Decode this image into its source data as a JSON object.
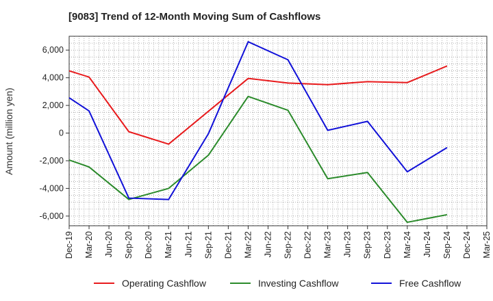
{
  "chart_data": {
    "type": "line",
    "title": "[9083]  Trend of 12-Month Moving Sum of Cashflows",
    "xlabel": "",
    "ylabel": "Amount (million yen)",
    "categories": [
      "Dec-19",
      "Mar-20",
      "Jun-20",
      "Sep-20",
      "Dec-20",
      "Mar-21",
      "Jun-21",
      "Sep-21",
      "Dec-21",
      "Mar-22",
      "Jun-22",
      "Sep-22",
      "Dec-22",
      "Mar-23",
      "Jun-23",
      "Sep-23",
      "Dec-23",
      "Mar-24",
      "Jun-24",
      "Sep-24",
      "Dec-24",
      "Mar-25"
    ],
    "ylim": [
      -6700,
      7000
    ],
    "yticks": [
      6000,
      4000,
      2000,
      0,
      -2000,
      -4000,
      -6000
    ],
    "ytick_labels": [
      "6,000",
      "4,000",
      "2,000",
      "0",
      "-2,000",
      "-4,000",
      "-6,000"
    ],
    "grid": true,
    "legend_position": "bottom",
    "series": [
      {
        "name": "Operating Cashflow",
        "color": "#e8191b",
        "points": [
          [
            "Dec-19",
            4500
          ],
          [
            "Mar-20",
            4050
          ],
          [
            "Sep-20",
            100
          ],
          [
            "Mar-21",
            -800
          ],
          [
            "Mar-22",
            3950
          ],
          [
            "Sep-22",
            3620
          ],
          [
            "Mar-23",
            3500
          ],
          [
            "Sep-23",
            3720
          ],
          [
            "Mar-24",
            3650
          ],
          [
            "Sep-24",
            4850
          ]
        ]
      },
      {
        "name": "Investing Cashflow",
        "color": "#2a8a2a",
        "points": [
          [
            "Dec-19",
            -1950
          ],
          [
            "Mar-20",
            -2450
          ],
          [
            "Sep-20",
            -4800
          ],
          [
            "Mar-21",
            -4000
          ],
          [
            "Sep-21",
            -1600
          ],
          [
            "Mar-22",
            2650
          ],
          [
            "Sep-22",
            1650
          ],
          [
            "Mar-23",
            -3300
          ],
          [
            "Sep-23",
            -2850
          ],
          [
            "Mar-24",
            -6450
          ],
          [
            "Sep-24",
            -5900
          ]
        ]
      },
      {
        "name": "Free Cashflow",
        "color": "#1010d8",
        "points": [
          [
            "Dec-19",
            2550
          ],
          [
            "Mar-20",
            1600
          ],
          [
            "Sep-20",
            -4700
          ],
          [
            "Mar-21",
            -4800
          ],
          [
            "Sep-21",
            -50
          ],
          [
            "Mar-22",
            6600
          ],
          [
            "Sep-22",
            5300
          ],
          [
            "Mar-23",
            200
          ],
          [
            "Sep-23",
            850
          ],
          [
            "Mar-24",
            -2800
          ],
          [
            "Sep-24",
            -1050
          ]
        ]
      }
    ]
  }
}
